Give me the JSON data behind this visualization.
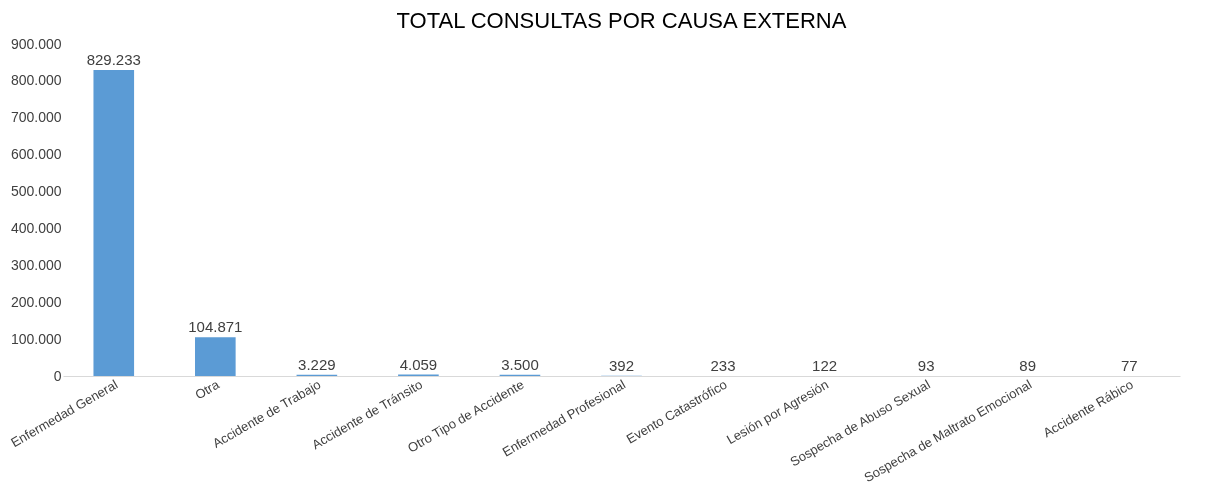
{
  "chart_data": {
    "type": "bar",
    "title": "TOTAL CONSULTAS POR CAUSA EXTERNA",
    "categories": [
      "Enfermedad General",
      "Otra",
      "Accidente de Trabajo",
      "Accidente de Tránsito",
      "Otro Tipo de Accidente",
      "Enfermedad Profesional",
      "Evento Catastrófico",
      "Lesión por Agresión",
      "Sospecha de Abuso Sexual",
      "Sospecha de Maltrato Emocional",
      "Accidente Rábico"
    ],
    "values": [
      829233,
      104871,
      3229,
      4059,
      3500,
      392,
      233,
      122,
      93,
      89,
      77
    ],
    "value_labels": [
      "829.233",
      "104.871",
      "3.229",
      "4.059",
      "3.500",
      "392",
      "233",
      "122",
      "93",
      "89",
      "77"
    ],
    "color": "#5b9bd5",
    "ylim": [
      0,
      900000
    ],
    "yticks": [
      {
        "value": 0,
        "label": "0"
      },
      {
        "value": 100000,
        "label": "100.000"
      },
      {
        "value": 200000,
        "label": "200.000"
      },
      {
        "value": 300000,
        "label": "300.000"
      },
      {
        "value": 400000,
        "label": "400.000"
      },
      {
        "value": 500000,
        "label": "500.000"
      },
      {
        "value": 600000,
        "label": "600.000"
      },
      {
        "value": 700000,
        "label": "700.000"
      },
      {
        "value": 800000,
        "label": "800.000"
      },
      {
        "value": 900000,
        "label": "900.000"
      }
    ],
    "grid": false
  }
}
